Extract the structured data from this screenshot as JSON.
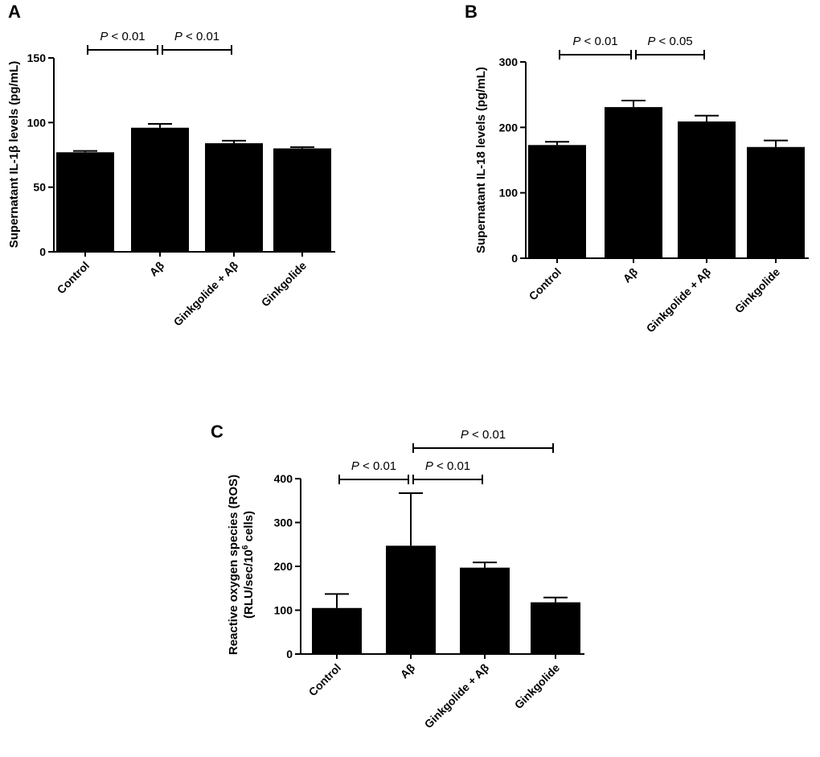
{
  "chart_data": [
    {
      "panel": "A",
      "type": "bar",
      "categories": [
        "Control",
        "Aβ",
        "Ginkgolide + Aβ",
        "Ginkgolide"
      ],
      "values": [
        77,
        96,
        84,
        80
      ],
      "errors": [
        1,
        3,
        2,
        1
      ],
      "ylabel": "Supernatant IL-1β levels (pg/mL)",
      "ylim": [
        0,
        150
      ],
      "yticks": [
        0,
        50,
        100,
        150
      ],
      "significance": [
        {
          "from": 0,
          "to": 1,
          "label": "P < 0.01",
          "level": 0
        },
        {
          "from": 1,
          "to": 2,
          "label": "P < 0.01",
          "level": 0
        }
      ]
    },
    {
      "panel": "B",
      "type": "bar",
      "categories": [
        "Control",
        "Aβ",
        "Ginkgolide + Aβ",
        "Ginkgolide"
      ],
      "values": [
        173,
        231,
        209,
        170
      ],
      "errors": [
        5,
        10,
        9,
        10
      ],
      "ylabel": "Supernatant IL-18 levels (pg/mL)",
      "ylim": [
        0,
        300
      ],
      "yticks": [
        0,
        100,
        200,
        300
      ],
      "significance": [
        {
          "from": 0,
          "to": 1,
          "label": "P < 0.01",
          "level": 0
        },
        {
          "from": 1,
          "to": 2,
          "label": "P < 0.05",
          "level": 0
        }
      ]
    },
    {
      "panel": "C",
      "type": "bar",
      "categories": [
        "Control",
        "Aβ",
        "Ginkgolide + Aβ",
        "Ginkgolide"
      ],
      "values": [
        105,
        247,
        197,
        118
      ],
      "errors": [
        32,
        120,
        12,
        11
      ],
      "ylabel_line1": "Reactive oxygen species (ROS)",
      "ylabel_line2": "(RLU/sec/10",
      "ylabel_sup": "6",
      "ylabel_line2_end": " cells)",
      "ylim": [
        0,
        400
      ],
      "yticks": [
        0,
        100,
        200,
        300,
        400
      ],
      "significance": [
        {
          "from": 0,
          "to": 1,
          "label": "P < 0.01",
          "level": 0
        },
        {
          "from": 1,
          "to": 2,
          "label": "P < 0.01",
          "level": 0
        },
        {
          "from": 1,
          "to": 3,
          "label": "P < 0.01",
          "level": 1
        }
      ]
    }
  ]
}
